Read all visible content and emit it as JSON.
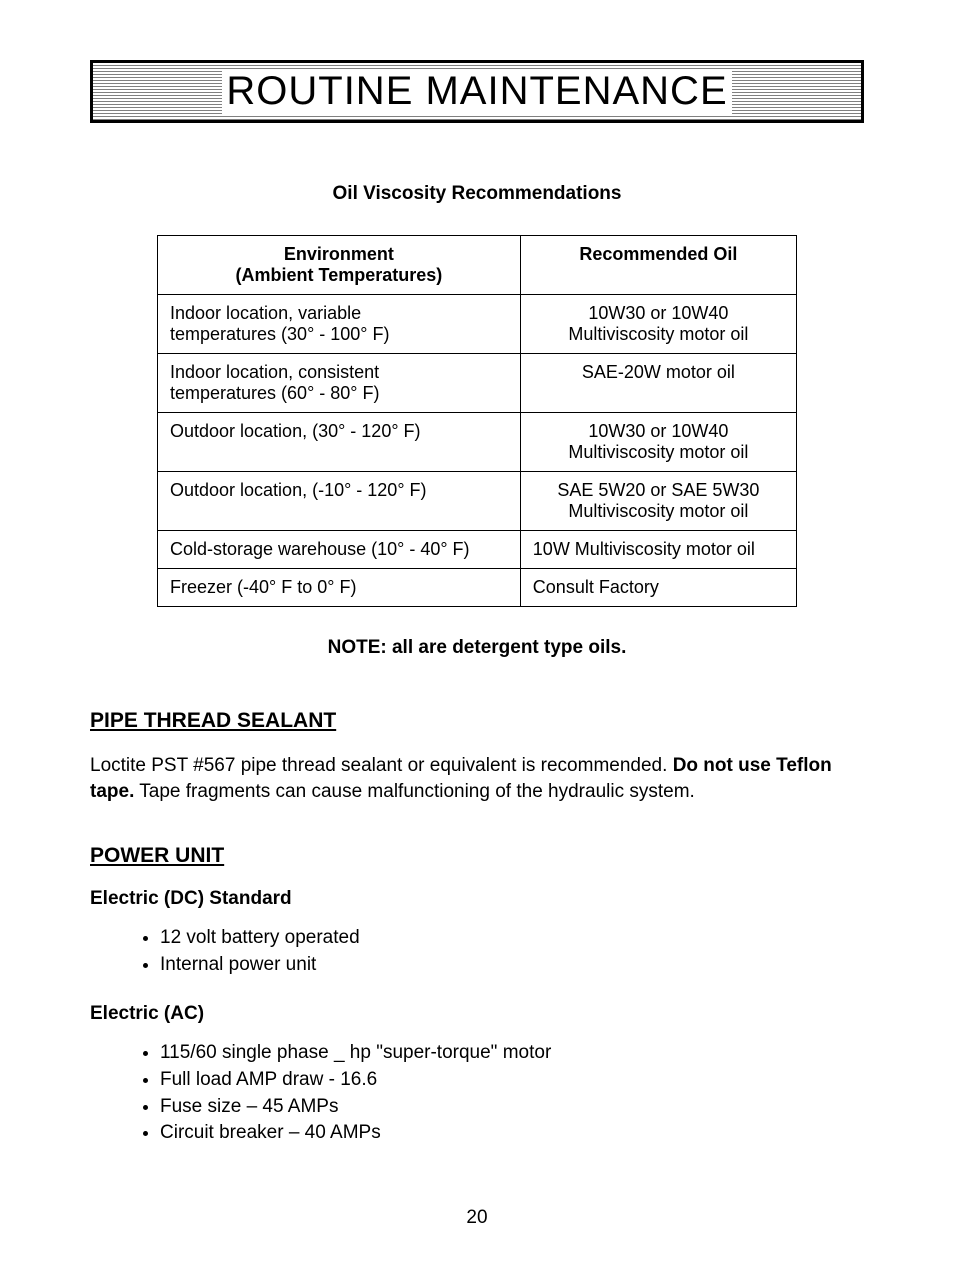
{
  "title": "ROUTINE MAINTENANCE",
  "table_title": "Oil Viscosity Recommendations",
  "table": {
    "headers": {
      "col1_line1": "Environment",
      "col1_line2": "(Ambient Temperatures)",
      "col2": "Recommended Oil"
    },
    "rows": [
      {
        "env_line1": "Indoor location, variable",
        "env_line2": "temperatures (30° - 100° F)",
        "oil_line1": "10W30 or 10W40",
        "oil_line2": "Multiviscosity motor oil",
        "oil_align": "center"
      },
      {
        "env_line1": "Indoor location, consistent",
        "env_line2": "temperatures (60°  - 80° F)",
        "oil_line1": "SAE-20W motor oil",
        "oil_line2": "",
        "oil_align": "center"
      },
      {
        "env_line1": "Outdoor location, (30° - 120° F)",
        "env_line2": "",
        "oil_line1": "10W30 or 10W40",
        "oil_line2": "Multiviscosity motor oil",
        "oil_align": "center"
      },
      {
        "env_line1": "Outdoor location, (-10° - 120° F)",
        "env_line2": "",
        "oil_line1": "SAE 5W20 or SAE 5W30",
        "oil_line2": "Multiviscosity motor oil",
        "oil_align": "center"
      },
      {
        "env_line1": "Cold-storage warehouse (10° - 40° F)",
        "env_line2": "",
        "oil_line1": "10W Multiviscosity motor oil",
        "oil_line2": "",
        "oil_align": "left"
      },
      {
        "env_line1": "Freezer (-40° F to 0° F)",
        "env_line2": "",
        "oil_line1": "Consult Factory",
        "oil_line2": "",
        "oil_align": "left"
      }
    ]
  },
  "note": "NOTE:  all are detergent type oils.",
  "sealant": {
    "heading": "PIPE THREAD SEALANT",
    "text_part1": "Loctite PST #567 pipe thread sealant or equivalent is recommended.  ",
    "text_bold": "Do not use Teflon tape.",
    "text_part2": "  Tape fragments can cause malfunctioning of the hydraulic system."
  },
  "power_unit": {
    "heading": "POWER UNIT",
    "dc": {
      "heading": "Electric (DC) Standard",
      "items": [
        "12 volt battery operated",
        "Internal power unit"
      ]
    },
    "ac": {
      "heading": "Electric (AC)",
      "items": [
        "115/60 single phase _ hp \"super-torque\" motor",
        "Full load AMP draw - 16.6",
        "Fuse size – 45 AMPs",
        "Circuit breaker – 40 AMPs"
      ]
    }
  },
  "page_number": "20"
}
